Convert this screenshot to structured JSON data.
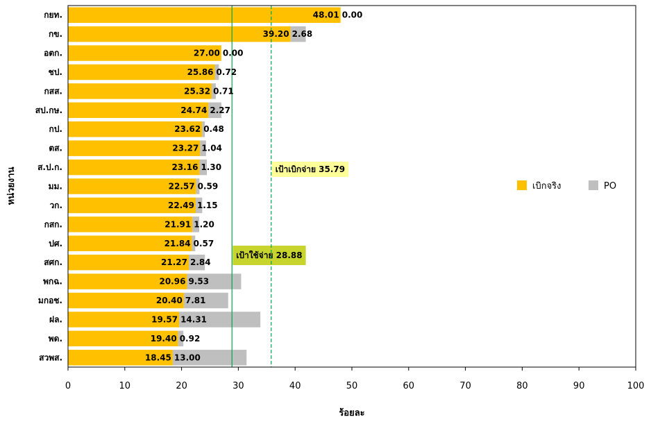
{
  "chart_data": {
    "type": "bar",
    "orientation": "horizontal",
    "stacked": true,
    "title": "",
    "xlabel": "ร้อยละ",
    "ylabel": "หน่วยงาน",
    "xlim": [
      0,
      100
    ],
    "xticks": [
      0,
      10,
      20,
      30,
      40,
      50,
      60,
      70,
      80,
      90,
      100
    ],
    "categories": [
      "กยท.",
      "กข.",
      "อตก.",
      "ชป.",
      "กสส.",
      "สป.กษ.",
      "กป.",
      "ตส.",
      "ส.ป.ก.",
      "มม.",
      "วก.",
      "กสก.",
      "ปศ.",
      "สศก.",
      "พกฉ.",
      "มกอช.",
      "ฝล.",
      "พด.",
      "สวพส."
    ],
    "series": [
      {
        "name": "เบิกจริง",
        "color": "#FFC000",
        "values": [
          48.01,
          39.2,
          27.0,
          25.86,
          25.32,
          24.74,
          23.62,
          23.27,
          23.16,
          22.57,
          22.49,
          21.91,
          21.84,
          21.27,
          20.96,
          20.4,
          19.57,
          19.4,
          18.45
        ]
      },
      {
        "name": "PO",
        "color": "#BFBFBF",
        "values": [
          0.0,
          2.68,
          0.0,
          0.72,
          0.71,
          2.27,
          0.48,
          1.04,
          1.3,
          0.59,
          1.15,
          1.2,
          0.57,
          2.84,
          9.53,
          7.81,
          14.31,
          0.92,
          13.0
        ]
      }
    ],
    "value_labels": {
      "actual": [
        "48.01",
        "39.20",
        "27.00",
        "25.86",
        "25.32",
        "24.74",
        "23.62",
        "23.27",
        "23.16",
        "22.57",
        "22.49",
        "21.91",
        "21.84",
        "21.27",
        "20.96",
        "20.40",
        "19.57",
        "19.40",
        "18.45"
      ],
      "po": [
        "0.00",
        "2.68",
        "0.00",
        "0.72",
        "0.71",
        "2.27",
        "0.48",
        "1.04",
        "1.30",
        "0.59",
        "1.15",
        "1.20",
        "0.57",
        "2.84",
        "9.53",
        "7.81",
        "14.31",
        "0.92",
        "13.00"
      ]
    },
    "reference_lines": [
      {
        "label": "เป้าใช้จ่าย 28.88",
        "value": 28.88,
        "style": "solid",
        "color": "#00A651",
        "label_bg": "#C8D42E"
      },
      {
        "label": "เป้าเบิกจ่าย 35.79",
        "value": 35.79,
        "style": "dashed",
        "color": "#00A651",
        "label_bg": "#FFFF99"
      }
    ],
    "legend": {
      "placement": "right",
      "items": [
        "เบิกจริง",
        "PO"
      ]
    },
    "grid": false
  }
}
